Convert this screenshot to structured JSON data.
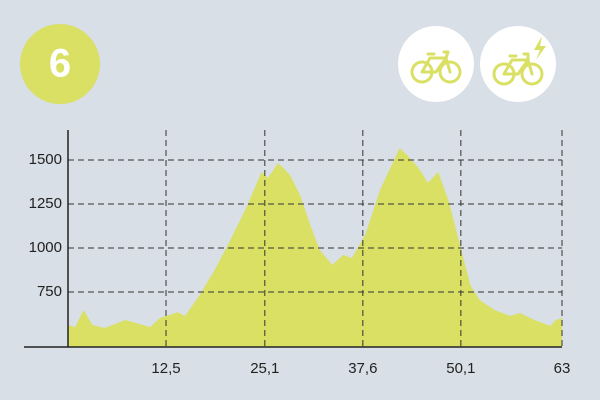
{
  "badge": "6",
  "chart_data": {
    "type": "area",
    "x": [
      0,
      0.9,
      2.0,
      3.1,
      4.7,
      7.3,
      10.5,
      11.7,
      14.0,
      14.9,
      16.8,
      18.7,
      20.7,
      22.6,
      24.7,
      25.5,
      26.8,
      28.3,
      29.6,
      30.9,
      32.1,
      33.7,
      35.1,
      36.2,
      37.9,
      39.8,
      41.3,
      42.3,
      43.6,
      44.9,
      45.9,
      47.2,
      48.5,
      50.0,
      51.3,
      52.5,
      54.4,
      56.4,
      57.6,
      59.5,
      61.5,
      62.2,
      63
    ],
    "values": [
      563,
      551,
      648,
      563,
      546,
      591,
      551,
      602,
      636,
      613,
      733,
      875,
      1045,
      1216,
      1432,
      1398,
      1483,
      1415,
      1301,
      1131,
      989,
      904,
      960,
      943,
      1074,
      1330,
      1472,
      1568,
      1511,
      1443,
      1369,
      1432,
      1273,
      1017,
      790,
      705,
      648,
      614,
      631,
      591,
      557,
      591,
      602
    ],
    "color": "#d9e064",
    "xlim": [
      0,
      63
    ],
    "xticks": [
      {
        "value": 12.5,
        "label": "12,5"
      },
      {
        "value": 25.1,
        "label": "25,1"
      },
      {
        "value": 37.6,
        "label": "37,6"
      },
      {
        "value": 50.1,
        "label": "50,1"
      },
      63
    ],
    "ylim": [
      438,
      1670
    ],
    "yticks": [
      750,
      1000,
      1250,
      1500
    ],
    "grid": true
  }
}
